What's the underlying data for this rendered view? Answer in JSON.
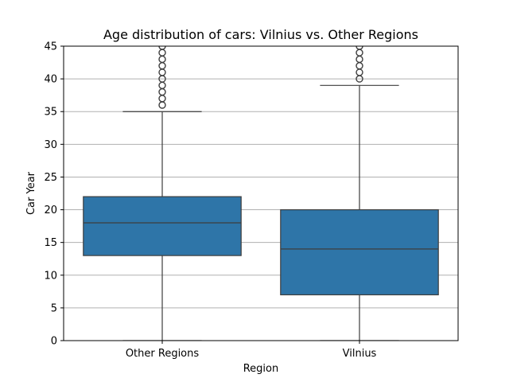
{
  "chart_data": {
    "type": "box",
    "title": "Age distribution of cars: Vilnius vs. Other Regions",
    "xlabel": "Region",
    "ylabel": "Car Year",
    "ylim": [
      0,
      45
    ],
    "yticks": [
      0,
      5,
      10,
      15,
      20,
      25,
      30,
      35,
      40,
      45
    ],
    "grid": "y",
    "box_color": "#2e75a8",
    "categories": [
      "Other Regions",
      "Vilnius"
    ],
    "boxes": [
      {
        "category": "Other Regions",
        "whisker_low": 0,
        "q1": 13,
        "median": 18,
        "q3": 22,
        "whisker_high": 35,
        "outliers": [
          36,
          37,
          38,
          39,
          40,
          41,
          42,
          43,
          44,
          45
        ]
      },
      {
        "category": "Vilnius",
        "whisker_low": 0,
        "q1": 7,
        "median": 14,
        "q3": 20,
        "whisker_high": 39,
        "outliers": [
          40,
          41,
          42,
          43,
          44,
          45
        ]
      }
    ]
  }
}
